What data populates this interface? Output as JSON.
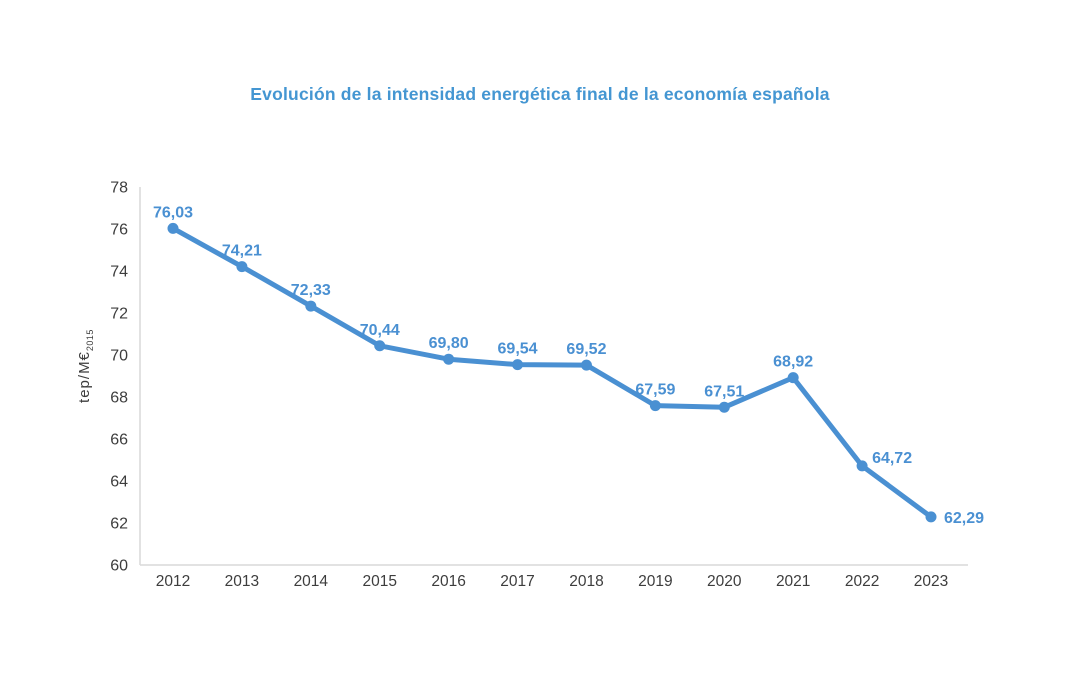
{
  "page": {
    "background": "#ffffff"
  },
  "chart_data": {
    "type": "line",
    "title": "Evolución de la intensidad energética final de la economía española",
    "ylabel": "tep/M€",
    "ylabel_subscript": "2015",
    "xlabel": "",
    "categories": [
      "2012",
      "2013",
      "2014",
      "2015",
      "2016",
      "2017",
      "2018",
      "2019",
      "2020",
      "2021",
      "2022",
      "2023"
    ],
    "values": [
      76.03,
      74.21,
      72.33,
      70.44,
      69.8,
      69.54,
      69.52,
      67.59,
      67.51,
      68.92,
      64.72,
      62.29
    ],
    "value_labels": [
      "76,03",
      "74,21",
      "72,33",
      "70,44",
      "69,80",
      "69,54",
      "69,52",
      "67,59",
      "67,51",
      "68,92",
      "64,72",
      "62,29"
    ],
    "value_label_placements": [
      "above",
      "above",
      "above",
      "above",
      "above",
      "above",
      "above",
      "above",
      "above",
      "above",
      "above-right",
      "right"
    ],
    "ylim": [
      60,
      78
    ],
    "yticks": [
      60,
      62,
      64,
      66,
      68,
      70,
      72,
      74,
      76,
      78
    ],
    "grid": false,
    "legend": "none",
    "marker": "circle",
    "colors": {
      "line": "#4a90d2",
      "marker": "#4a90d2",
      "data_label": "#4a90d2",
      "title": "#4496d2",
      "tick_label": "#3d3d3d",
      "axis_line": "#d9d9d9"
    }
  }
}
